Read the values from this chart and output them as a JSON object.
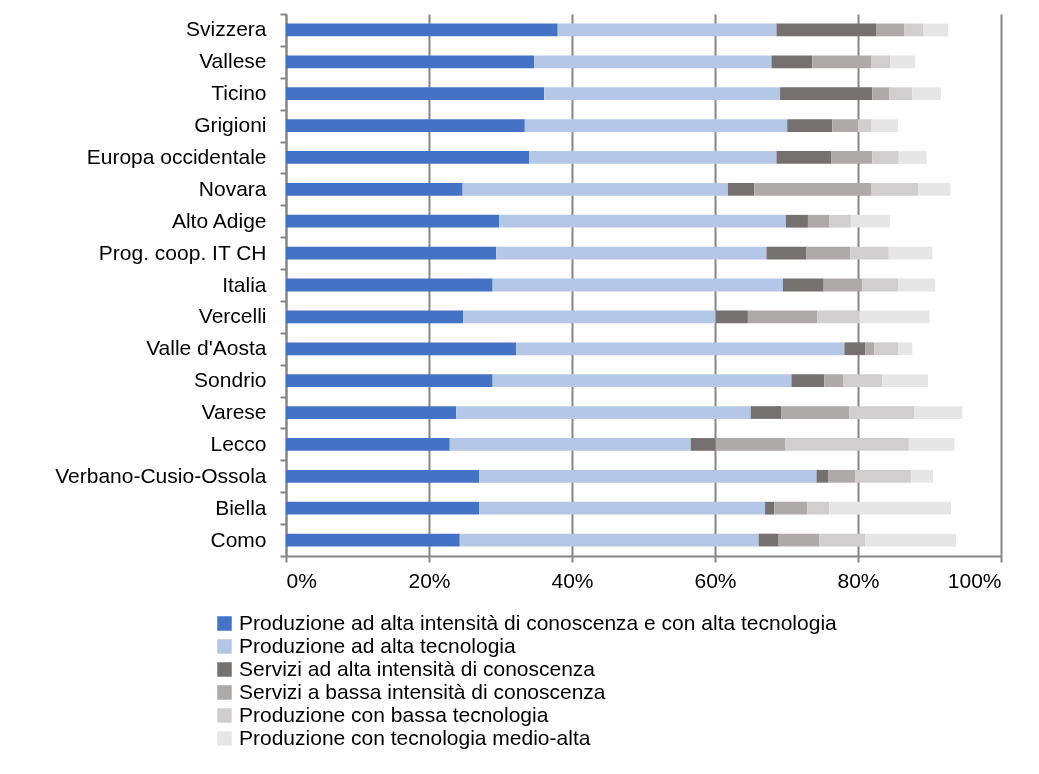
{
  "chart_data": {
    "type": "bar",
    "orientation": "horizontal",
    "stacked": true,
    "categories": [
      "Svizzera",
      "Vallese",
      "Ticino",
      "Grigioni",
      "Europa occidentale",
      "Novara",
      "Alto Adige",
      "Prog. coop. IT CH",
      "Italia",
      "Vercelli",
      "Valle d'Aosta",
      "Sondrio",
      "Varese",
      "Lecco",
      "Verbano-Cusio-Ossola",
      "Biella",
      "Como"
    ],
    "series": [
      {
        "name": "Produzione ad alta intensità di conoscenza e con alta tecnologia",
        "color": "#4472c4",
        "values": [
          38.0,
          34.7,
          36.1,
          33.4,
          34.0,
          24.7,
          29.8,
          29.4,
          28.9,
          24.8,
          32.2,
          28.9,
          23.8,
          22.9,
          27.0,
          27.0,
          24.3
        ]
      },
      {
        "name": "Produzione ad alta tecnologia",
        "color": "#b4c7e7",
        "values": [
          30.6,
          33.2,
          33.0,
          36.7,
          34.6,
          37.1,
          40.1,
          37.8,
          40.6,
          35.3,
          45.9,
          41.8,
          41.2,
          33.7,
          47.2,
          40.0,
          41.8
        ]
      },
      {
        "name": "Servizi ad alta intensità di conoscenza",
        "color": "#767171",
        "values": [
          14.0,
          5.7,
          12.9,
          6.3,
          7.7,
          3.7,
          3.1,
          5.6,
          5.7,
          4.5,
          2.9,
          4.6,
          4.3,
          3.5,
          1.6,
          1.3,
          2.8
        ]
      },
      {
        "name": "Servizi a bassa intensità di conoscenza",
        "color": "#aeaaaa",
        "values": [
          3.9,
          8.3,
          2.4,
          3.6,
          5.7,
          16.4,
          3.0,
          6.1,
          5.4,
          9.7,
          1.3,
          2.6,
          9.5,
          9.7,
          3.8,
          4.6,
          5.7
        ]
      },
      {
        "name": "Produzione con bassa tecnologia",
        "color": "#d0cece",
        "values": [
          2.6,
          2.6,
          3.2,
          1.9,
          3.7,
          6.5,
          3.0,
          5.4,
          5.0,
          5.9,
          3.3,
          5.5,
          9.1,
          17.3,
          7.8,
          3.1,
          6.4
        ]
      },
      {
        "name": "Produzione con tecnologia medio-alta",
        "color": "#e7e6e6",
        "values": [
          3.5,
          3.5,
          4.0,
          3.7,
          3.9,
          4.5,
          5.5,
          6.1,
          5.2,
          9.8,
          2.0,
          6.4,
          6.7,
          6.4,
          3.1,
          17.0,
          12.7
        ]
      }
    ],
    "xlim": [
      0,
      100
    ],
    "xticks": [
      {
        "value": 0,
        "label": "0%"
      },
      {
        "value": 20,
        "label": "20%"
      },
      {
        "value": 40,
        "label": "40%"
      },
      {
        "value": 60,
        "label": "60%"
      },
      {
        "value": 80,
        "label": "80%"
      },
      {
        "value": 100,
        "label": "100%"
      }
    ],
    "grid": "x",
    "legend": "bottom"
  }
}
